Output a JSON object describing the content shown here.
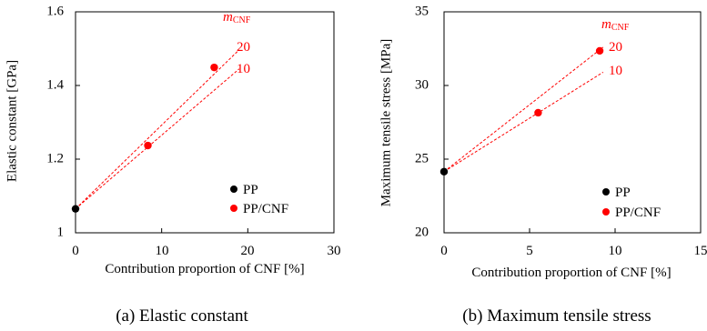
{
  "colors": {
    "pp": "#000000",
    "pp_cnf": "#ff0000",
    "trend": "#ff0000",
    "axis": "#000000"
  },
  "chart_data": [
    {
      "type": "scatter",
      "title": "",
      "caption": "(a) Elastic constant",
      "xlabel": "Contribution proportion of CNF  [%]",
      "ylabel": "Elastic constant [GPa]",
      "xlim": [
        0,
        30
      ],
      "ylim": [
        1,
        1.6
      ],
      "xticks": [
        "0",
        "10",
        "20",
        "30"
      ],
      "yticks": [
        "1",
        "1.2",
        "1.4",
        "1.6"
      ],
      "legend_placement": "bottom-right",
      "grid": false,
      "series": [
        {
          "name": "PP",
          "color": "#000000",
          "points": [
            [
              0,
              1.065
            ]
          ]
        },
        {
          "name": "PP/CNF",
          "color": "#ff0000",
          "points": [
            [
              8.4,
              1.237
            ],
            [
              16.1,
              1.449
            ]
          ]
        }
      ],
      "trend_lines": [
        {
          "label": "20",
          "from": [
            0,
            1.065
          ],
          "to": [
            19.0,
            1.497
          ]
        },
        {
          "label": "10",
          "from": [
            0,
            1.065
          ],
          "to": [
            19.0,
            1.445
          ]
        }
      ],
      "annotation": {
        "var": "m",
        "sub": "CNF"
      }
    },
    {
      "type": "scatter",
      "title": "",
      "caption": "(b) Maximum tensile stress",
      "xlabel": "Contribution proportion of CNF  [%]",
      "ylabel": "Maximum tensile stress [MPa]",
      "xlim": [
        0,
        15
      ],
      "ylim": [
        20,
        35
      ],
      "xticks": [
        "0",
        "5",
        "10",
        "15"
      ],
      "yticks": [
        "20",
        "25",
        "30",
        "35"
      ],
      "legend_placement": "bottom-right",
      "grid": false,
      "series": [
        {
          "name": "PP",
          "color": "#000000",
          "points": [
            [
              0,
              24.15
            ]
          ]
        },
        {
          "name": "PP/CNF",
          "color": "#ff0000",
          "points": [
            [
              5.5,
              28.15
            ],
            [
              9.1,
              32.35
            ]
          ]
        }
      ],
      "trend_lines": [
        {
          "label": "20",
          "from": [
            0,
            24.15
          ],
          "to": [
            9.3,
            32.6
          ]
        },
        {
          "label": "10",
          "from": [
            0,
            24.15
          ],
          "to": [
            9.3,
            30.9
          ]
        }
      ],
      "annotation": {
        "var": "m",
        "sub": "CNF"
      }
    }
  ]
}
